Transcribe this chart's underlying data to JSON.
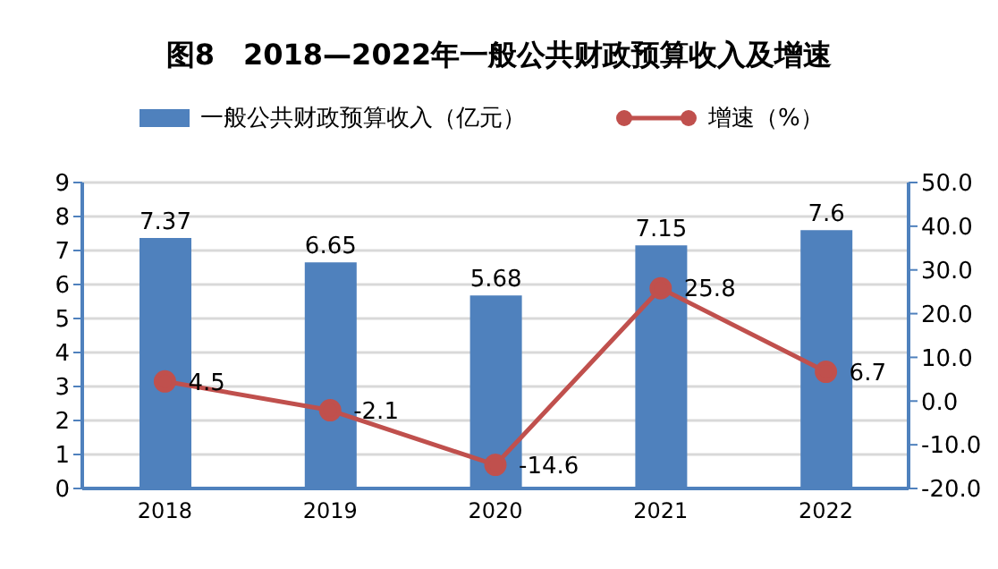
{
  "chart_data": {
    "type": "bar",
    "title": "图8　2018—2022年一般公共财政预算收入及增速",
    "categories": [
      "2018",
      "2019",
      "2020",
      "2021",
      "2022"
    ],
    "series": [
      {
        "name": "一般公共财政预算收入（亿元）",
        "color": "#4f81bd",
        "values": [
          7.37,
          6.65,
          5.68,
          7.15,
          7.6
        ]
      },
      {
        "name": "增速（%）",
        "type": "line",
        "axis": "y2",
        "color": "#c0504d",
        "values": [
          4.5,
          -2.1,
          -14.6,
          25.8,
          6.7
        ]
      }
    ],
    "ylim": [
      0,
      9
    ],
    "yticks": [
      0,
      1,
      2,
      3,
      4,
      5,
      6,
      7,
      8,
      9
    ],
    "y2lim": [
      -20,
      50
    ],
    "y2ticks": [
      {
        "value": -20,
        "label": "-20.0"
      },
      {
        "value": -10,
        "label": "-10.0"
      },
      {
        "value": 0,
        "label": "0.0"
      },
      {
        "value": 10,
        "label": "10.0"
      },
      {
        "value": 20,
        "label": "20.0"
      },
      {
        "value": 30,
        "label": "30.0"
      },
      {
        "value": 40,
        "label": "40.0"
      },
      {
        "value": 50,
        "label": "50.0"
      }
    ],
    "grid": "y",
    "legend": "top",
    "marker": "circle",
    "line_style": "solid",
    "data_labels": true
  }
}
